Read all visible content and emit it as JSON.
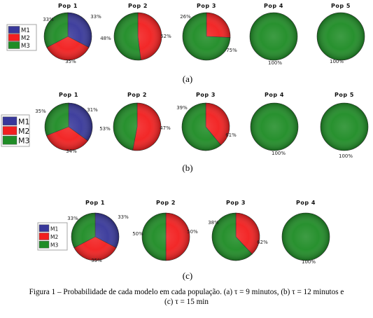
{
  "legend_labels": [
    "M1",
    "M2",
    "M3"
  ],
  "colors": {
    "M1": "#38389a",
    "M2": "#f21f1f",
    "M3": "#1f8c26"
  },
  "chart_data": [
    {
      "type": "pie",
      "panel_label": "(a)",
      "legend": [
        "M1",
        "M2",
        "M3"
      ],
      "pies": [
        {
          "title": "Pop 1",
          "values": [
            33,
            35,
            33
          ],
          "series": [
            "M1",
            "M2",
            "M3"
          ],
          "labels": [
            "33%",
            "35%",
            "33%"
          ]
        },
        {
          "title": "Pop 2",
          "values": [
            0,
            48,
            52
          ],
          "series": [
            "M1",
            "M2",
            "M3"
          ],
          "labels": [
            "",
            "48%",
            "52%"
          ]
        },
        {
          "title": "Pop 3",
          "values": [
            0,
            26,
            75
          ],
          "series": [
            "M1",
            "M2",
            "M3"
          ],
          "labels": [
            "",
            "26%",
            "75%"
          ]
        },
        {
          "title": "Pop 4",
          "values": [
            0,
            0,
            100
          ],
          "series": [
            "M1",
            "M2",
            "M3"
          ],
          "labels": [
            "",
            "",
            "100%"
          ]
        },
        {
          "title": "Pop 5",
          "values": [
            0,
            0,
            100
          ],
          "series": [
            "M1",
            "M2",
            "M3"
          ],
          "labels": [
            "",
            "",
            "100%"
          ]
        }
      ]
    },
    {
      "type": "pie",
      "panel_label": "(b)",
      "legend": [
        "M1",
        "M2",
        "M3"
      ],
      "pies": [
        {
          "title": "Pop 1",
          "values": [
            35,
            34,
            31
          ],
          "series": [
            "M1",
            "M2",
            "M3"
          ],
          "labels": [
            "35%",
            "34%",
            "31%"
          ]
        },
        {
          "title": "Pop 2",
          "values": [
            0,
            53,
            47
          ],
          "series": [
            "M1",
            "M2",
            "M3"
          ],
          "labels": [
            "",
            "53%",
            "47%"
          ]
        },
        {
          "title": "Pop 3",
          "values": [
            0,
            39,
            61
          ],
          "series": [
            "M1",
            "M2",
            "M3"
          ],
          "labels": [
            "",
            "39%",
            "61%"
          ]
        },
        {
          "title": "Pop 4",
          "values": [
            0,
            0,
            100
          ],
          "series": [
            "M1",
            "M2",
            "M3"
          ],
          "labels": [
            "",
            "",
            "100%"
          ]
        },
        {
          "title": "Pop 5",
          "values": [
            0,
            0,
            100
          ],
          "series": [
            "M1",
            "M2",
            "M3"
          ],
          "labels": [
            "",
            "",
            "100%"
          ]
        }
      ]
    },
    {
      "type": "pie",
      "panel_label": "(c)",
      "legend": [
        "M1",
        "M2",
        "M3"
      ],
      "pies": [
        {
          "title": "Pop 1",
          "values": [
            33,
            35,
            33
          ],
          "series": [
            "M1",
            "M2",
            "M3"
          ],
          "labels": [
            "33%",
            "35%",
            "33%"
          ]
        },
        {
          "title": "Pop 2",
          "values": [
            0,
            50,
            50
          ],
          "series": [
            "M1",
            "M2",
            "M3"
          ],
          "labels": [
            "",
            "50%",
            "50%"
          ]
        },
        {
          "title": "Pop 3",
          "values": [
            0,
            38,
            62
          ],
          "series": [
            "M1",
            "M2",
            "M3"
          ],
          "labels": [
            "",
            "38%",
            "62%"
          ]
        },
        {
          "title": "Pop 4",
          "values": [
            0,
            0,
            100
          ],
          "series": [
            "M1",
            "M2",
            "M3"
          ],
          "labels": [
            "",
            "",
            "100%"
          ]
        }
      ]
    }
  ],
  "caption": {
    "line1": "Figura 1 – Probabilidade de cada modelo em cada população. (a) τ = 9 minutos, (b) τ = 12 minutos e",
    "line2": "(c) τ = 15 min"
  }
}
